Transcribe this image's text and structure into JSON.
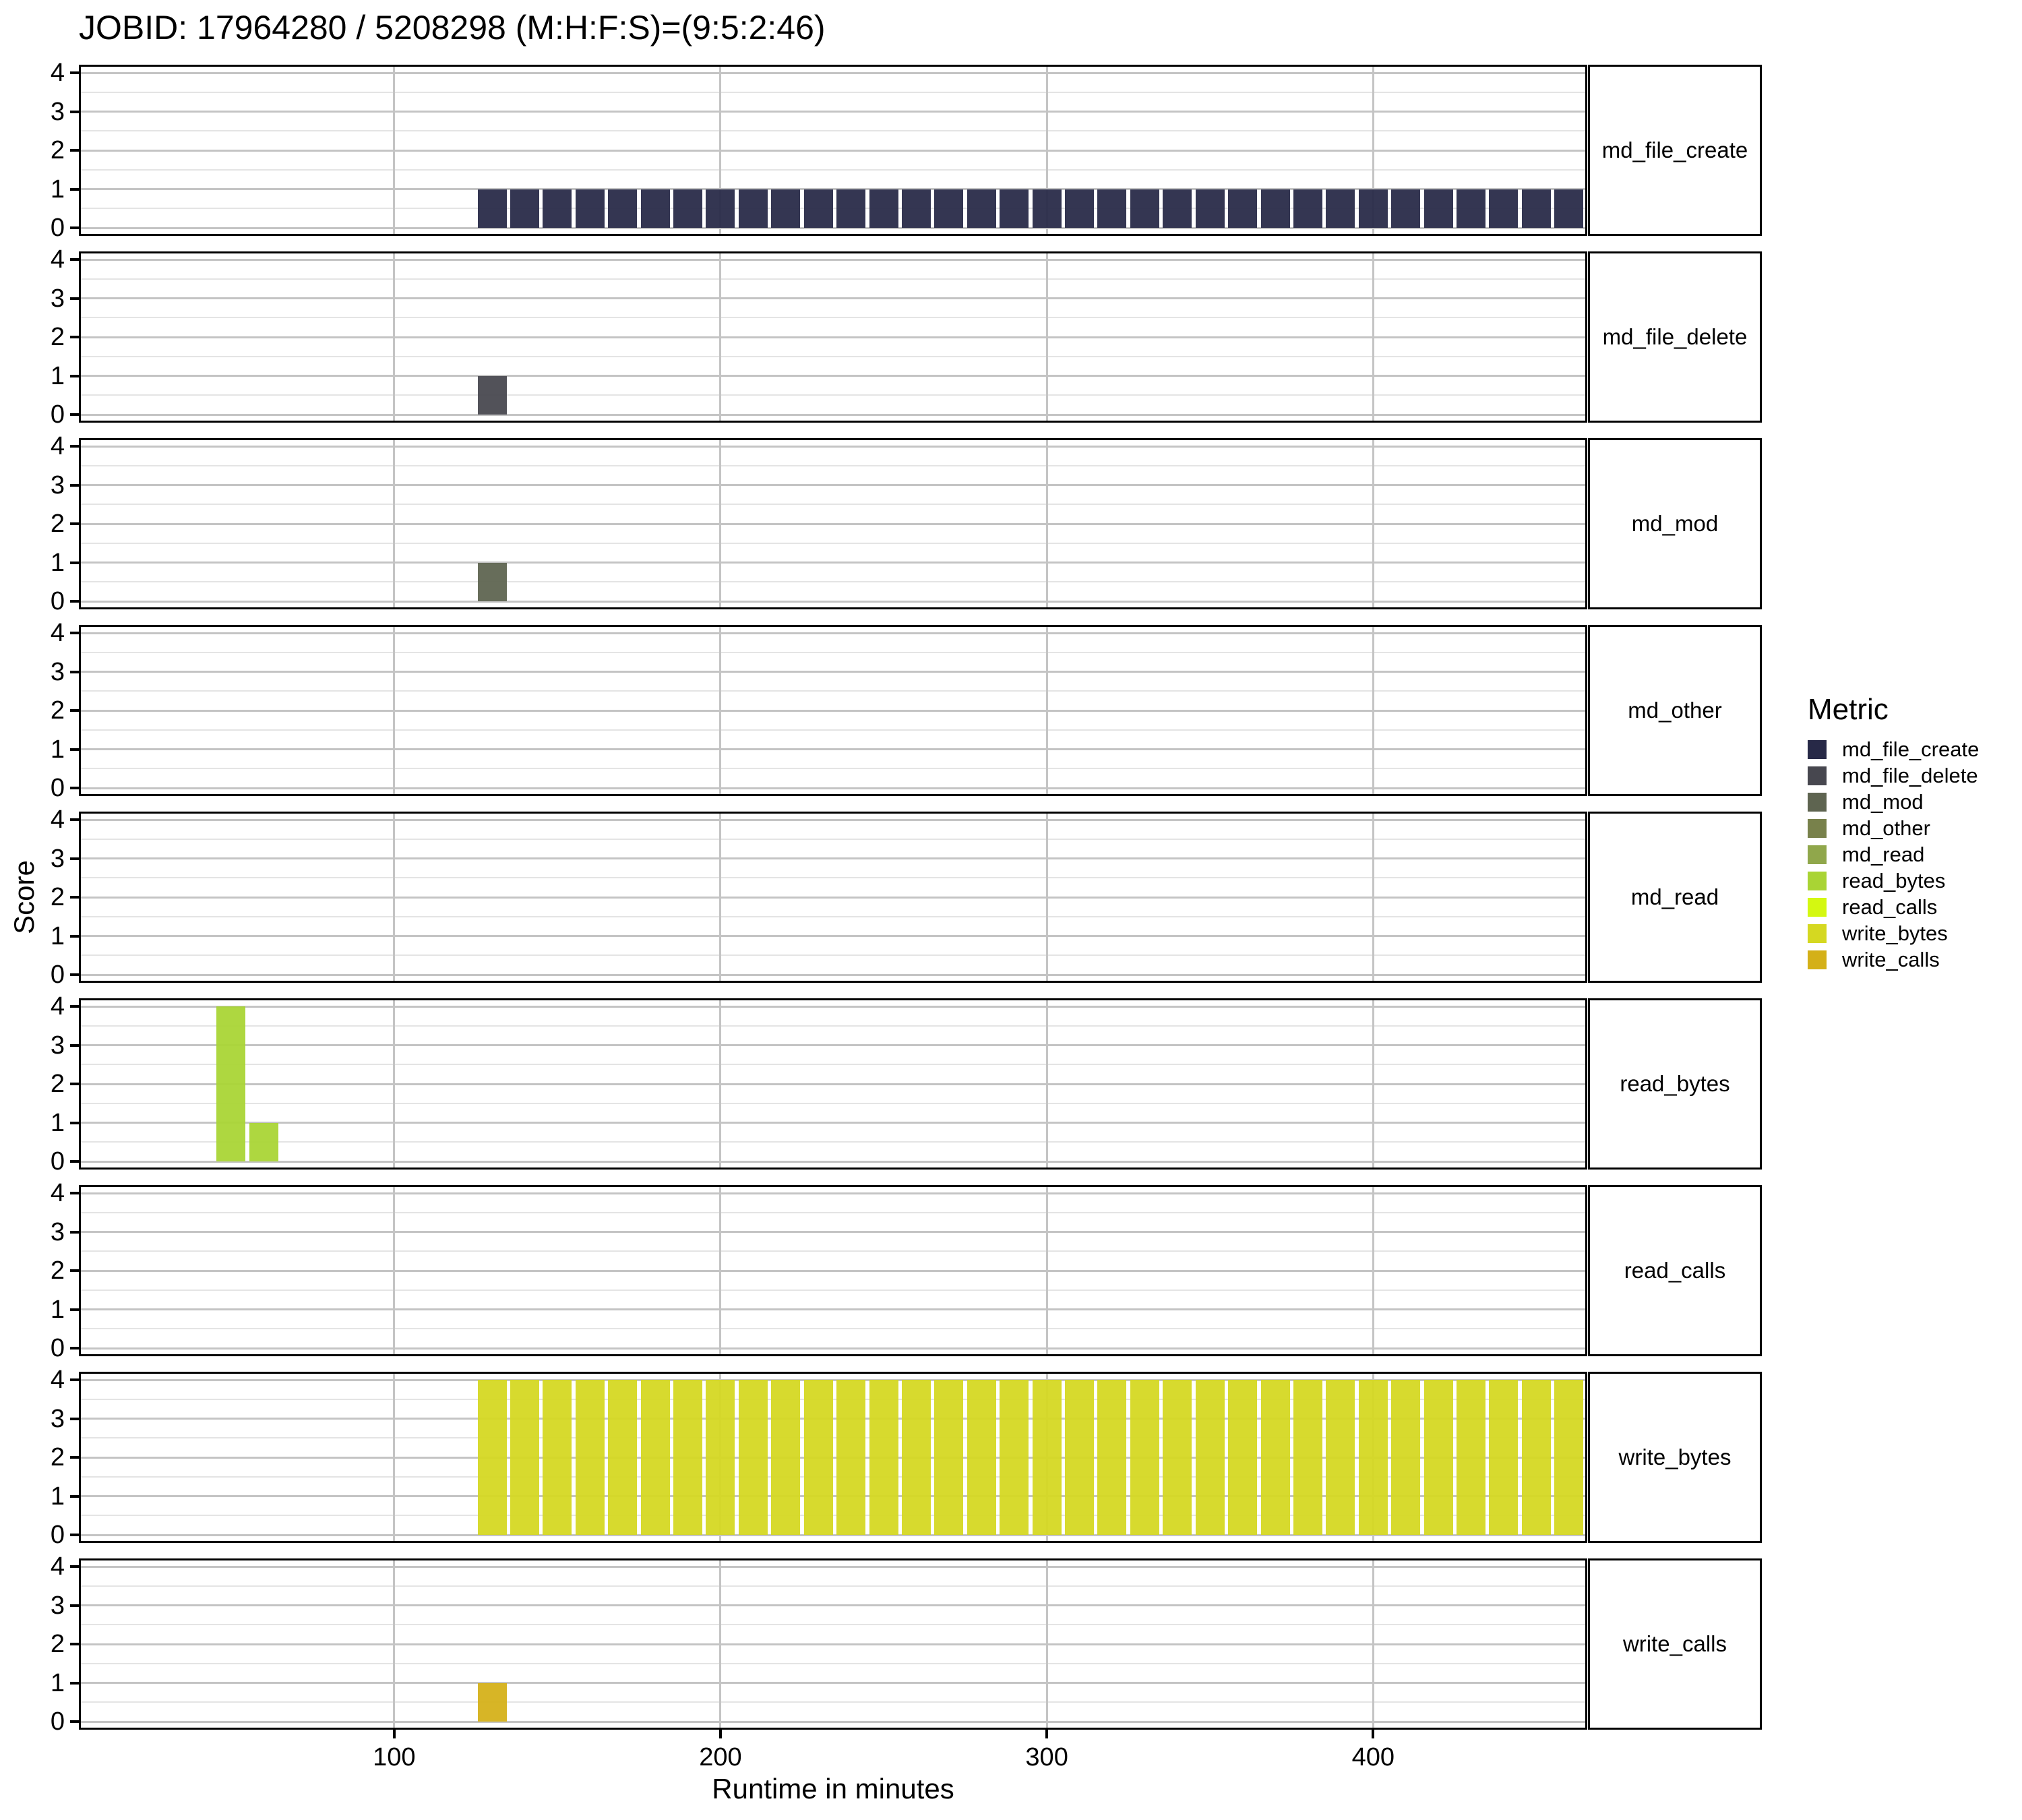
{
  "title": "JOBID: 17964280 / 5208298 (M:H:F:S)=(9:5:2:46)",
  "chart_data": {
    "type": "bar",
    "title": "JOBID: 17964280 / 5208298 (M:H:F:S)=(9:5:2:46)",
    "xlabel": "Runtime in minutes",
    "ylabel": "Score",
    "legend_title": "Metric",
    "legend_position": "right",
    "grid": "major-and-minor-horizontal, major-vertical",
    "xlim": [
      4,
      465
    ],
    "ylim": [
      0,
      4
    ],
    "x_ticks": [
      100,
      200,
      300,
      400
    ],
    "y_ticks": [
      0,
      1,
      2,
      3,
      4
    ],
    "bin_width_minutes": 10,
    "facets": [
      {
        "label": "md_file_create",
        "color": "#272947",
        "bars": [
          {
            "bin_start": 125,
            "score": 1
          },
          {
            "bin_start": 135,
            "score": 1
          },
          {
            "bin_start": 145,
            "score": 1
          },
          {
            "bin_start": 155,
            "score": 1
          },
          {
            "bin_start": 165,
            "score": 1
          },
          {
            "bin_start": 175,
            "score": 1
          },
          {
            "bin_start": 185,
            "score": 1
          },
          {
            "bin_start": 195,
            "score": 1
          },
          {
            "bin_start": 205,
            "score": 1
          },
          {
            "bin_start": 215,
            "score": 1
          },
          {
            "bin_start": 225,
            "score": 1
          },
          {
            "bin_start": 235,
            "score": 1
          },
          {
            "bin_start": 245,
            "score": 1
          },
          {
            "bin_start": 255,
            "score": 1
          },
          {
            "bin_start": 265,
            "score": 1
          },
          {
            "bin_start": 275,
            "score": 1
          },
          {
            "bin_start": 285,
            "score": 1
          },
          {
            "bin_start": 295,
            "score": 1
          },
          {
            "bin_start": 305,
            "score": 1
          },
          {
            "bin_start": 315,
            "score": 1
          },
          {
            "bin_start": 325,
            "score": 1
          },
          {
            "bin_start": 335,
            "score": 1
          },
          {
            "bin_start": 345,
            "score": 1
          },
          {
            "bin_start": 355,
            "score": 1
          },
          {
            "bin_start": 365,
            "score": 1
          },
          {
            "bin_start": 375,
            "score": 1
          },
          {
            "bin_start": 385,
            "score": 1
          },
          {
            "bin_start": 395,
            "score": 1
          },
          {
            "bin_start": 405,
            "score": 1
          },
          {
            "bin_start": 415,
            "score": 1
          },
          {
            "bin_start": 425,
            "score": 1
          },
          {
            "bin_start": 435,
            "score": 1
          },
          {
            "bin_start": 445,
            "score": 1
          },
          {
            "bin_start": 455,
            "score": 1
          }
        ]
      },
      {
        "label": "md_file_delete",
        "color": "#47474f",
        "bars": [
          {
            "bin_start": 125,
            "score": 1
          }
        ]
      },
      {
        "label": "md_mod",
        "color": "#5e6450",
        "bars": [
          {
            "bin_start": 125,
            "score": 1
          }
        ]
      },
      {
        "label": "md_other",
        "color": "#78814b",
        "bars": []
      },
      {
        "label": "md_read",
        "color": "#90a74b",
        "bars": []
      },
      {
        "label": "read_bytes",
        "color": "#a9d434",
        "bars": [
          {
            "bin_start": 45,
            "score": 4
          },
          {
            "bin_start": 55,
            "score": 1
          }
        ]
      },
      {
        "label": "read_calls",
        "color": "#d4f811",
        "bars": []
      },
      {
        "label": "write_bytes",
        "color": "#d5d821",
        "bars": [
          {
            "bin_start": 125,
            "score": 4
          },
          {
            "bin_start": 135,
            "score": 4
          },
          {
            "bin_start": 145,
            "score": 4
          },
          {
            "bin_start": 155,
            "score": 4
          },
          {
            "bin_start": 165,
            "score": 4
          },
          {
            "bin_start": 175,
            "score": 4
          },
          {
            "bin_start": 185,
            "score": 4
          },
          {
            "bin_start": 195,
            "score": 4
          },
          {
            "bin_start": 205,
            "score": 4
          },
          {
            "bin_start": 215,
            "score": 4
          },
          {
            "bin_start": 225,
            "score": 4
          },
          {
            "bin_start": 235,
            "score": 4
          },
          {
            "bin_start": 245,
            "score": 4
          },
          {
            "bin_start": 255,
            "score": 4
          },
          {
            "bin_start": 265,
            "score": 4
          },
          {
            "bin_start": 275,
            "score": 4
          },
          {
            "bin_start": 285,
            "score": 4
          },
          {
            "bin_start": 295,
            "score": 4
          },
          {
            "bin_start": 305,
            "score": 4
          },
          {
            "bin_start": 315,
            "score": 4
          },
          {
            "bin_start": 325,
            "score": 4
          },
          {
            "bin_start": 335,
            "score": 4
          },
          {
            "bin_start": 345,
            "score": 4
          },
          {
            "bin_start": 355,
            "score": 4
          },
          {
            "bin_start": 365,
            "score": 4
          },
          {
            "bin_start": 375,
            "score": 4
          },
          {
            "bin_start": 385,
            "score": 4
          },
          {
            "bin_start": 395,
            "score": 4
          },
          {
            "bin_start": 405,
            "score": 4
          },
          {
            "bin_start": 415,
            "score": 4
          },
          {
            "bin_start": 425,
            "score": 4
          },
          {
            "bin_start": 435,
            "score": 4
          },
          {
            "bin_start": 445,
            "score": 4
          },
          {
            "bin_start": 455,
            "score": 4
          }
        ]
      },
      {
        "label": "write_calls",
        "color": "#d4b018",
        "bars": [
          {
            "bin_start": 125,
            "score": 1
          }
        ]
      }
    ],
    "legend": {
      "title": "Metric",
      "items": [
        {
          "label": "md_file_create",
          "color": "#272947"
        },
        {
          "label": "md_file_delete",
          "color": "#47474f"
        },
        {
          "label": "md_mod",
          "color": "#5e6450"
        },
        {
          "label": "md_other",
          "color": "#78814b"
        },
        {
          "label": "md_read",
          "color": "#90a74b"
        },
        {
          "label": "read_bytes",
          "color": "#a9d434"
        },
        {
          "label": "read_calls",
          "color": "#d4f811"
        },
        {
          "label": "write_bytes",
          "color": "#d5d821"
        },
        {
          "label": "write_calls",
          "color": "#d4b018"
        }
      ]
    }
  }
}
